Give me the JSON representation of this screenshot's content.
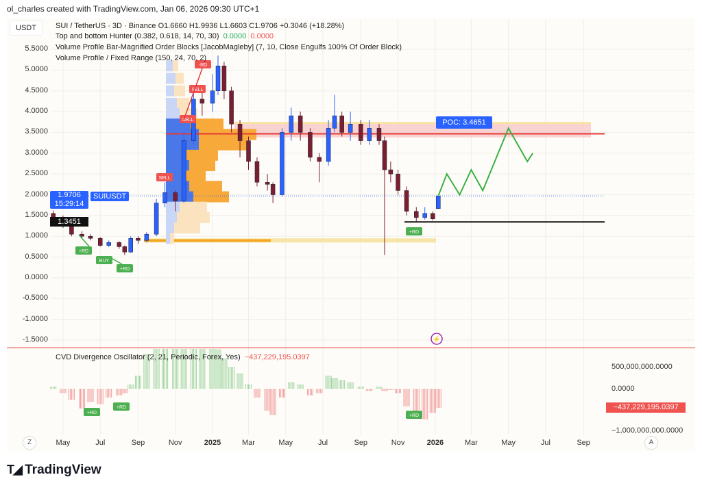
{
  "credit": "ol_charles created with TradingView.com, Jan 06, 2026 09:30 UTC+1",
  "symbol_box": "USDT",
  "legend": {
    "main": "SUI / TetherUS · 3D · Binance  O1.6660  H1.9936  L1.6603  C1.9706  +0.3046 (+18.28%)",
    "ind1": "Top and bottom Hunter (0.382, 0.618, 14, 70, 30)",
    "ind1_v1": "0.0000",
    "ind1_v2": "0.0000",
    "ind2": "Volume Profile Bar-Magnified Order Blocks [JacobMagleby] (7, 10, Close Engulfs 100% Of Order Block)",
    "ind3": "Volume Profile / Fixed Range (150, 24, 70, 2)"
  },
  "last_price": {
    "value": "1.9706",
    "countdown": "15:29:14",
    "symbol": "SUIUSDT"
  },
  "level_label": "1.3451",
  "poc_label": "POC: 3.4651",
  "signal_labels": {
    "buy": "BUY",
    "sell": "SELL",
    "rd_plus": "+RD",
    "rd_minus": "-RD"
  },
  "cvd": {
    "title": "CVD Divergence Oscillator (2, 21, Periodic, Forex, Yes)",
    "value": "−437,229,195.0397",
    "ticks": [
      "500,000,000.0000",
      "0.0000",
      "−1,000,000,000.0000"
    ]
  },
  "axis_buttons": {
    "left": "Z",
    "right": "A"
  },
  "logo": "TradingView",
  "colors": {
    "up": "#2962ff",
    "down": "#7b1f2e",
    "cvd_up": "#9fd49f",
    "cvd_down": "#f19a9a",
    "poc": "#e53935",
    "accent": "#2962ff"
  },
  "chart_data": {
    "type": "candlestick",
    "price_ticks": [
      "5.5000",
      "5.0000",
      "4.5000",
      "4.0000",
      "3.5000",
      "3.0000",
      "2.5000",
      "2.0000",
      "1.5000",
      "1.0000",
      "0.5000",
      "0.0000",
      "-0.5000",
      "-1.0000",
      "-1.5000"
    ],
    "ylim": [
      -1.5,
      5.5
    ],
    "time_ticks": [
      [
        "2024-05-01",
        "May",
        false
      ],
      [
        "2024-07-01",
        "Jul",
        false
      ],
      [
        "2024-09-01",
        "Sep",
        false
      ],
      [
        "2024-11-01",
        "Nov",
        false
      ],
      [
        "2025-01-01",
        "2025",
        true
      ],
      [
        "2025-03-01",
        "Mar",
        false
      ],
      [
        "2025-05-01",
        "May",
        false
      ],
      [
        "2025-07-01",
        "Jul",
        false
      ],
      [
        "2025-09-01",
        "Sep",
        false
      ],
      [
        "2025-11-01",
        "Nov",
        false
      ],
      [
        "2026-01-01",
        "2026",
        true
      ],
      [
        "2026-03-01",
        "Mar",
        false
      ],
      [
        "2026-05-01",
        "May",
        false
      ],
      [
        "2026-07-01",
        "Jul",
        false
      ],
      [
        "2026-09-01",
        "Sep",
        false
      ]
    ],
    "candles": [
      [
        "2024-04-15",
        1.55,
        1.62,
        1.35,
        1.45
      ],
      [
        "2024-05-01",
        1.45,
        1.5,
        1.2,
        1.25
      ],
      [
        "2024-05-15",
        1.25,
        1.3,
        1.0,
        1.05
      ],
      [
        "2024-06-01",
        1.05,
        1.12,
        0.95,
        1.0
      ],
      [
        "2024-06-15",
        1.0,
        1.05,
        0.9,
        0.95
      ],
      [
        "2024-07-01",
        0.95,
        0.98,
        0.75,
        0.78
      ],
      [
        "2024-07-15",
        0.78,
        0.9,
        0.74,
        0.85
      ],
      [
        "2024-08-01",
        0.85,
        0.88,
        0.7,
        0.75
      ],
      [
        "2024-08-10",
        0.75,
        0.78,
        0.55,
        0.62
      ],
      [
        "2024-08-20",
        0.62,
        1.0,
        0.6,
        0.95
      ],
      [
        "2024-09-01",
        0.95,
        1.0,
        0.82,
        0.9
      ],
      [
        "2024-09-15",
        0.9,
        1.1,
        0.85,
        1.05
      ],
      [
        "2024-10-01",
        1.05,
        1.9,
        1.0,
        1.8
      ],
      [
        "2024-10-15",
        1.8,
        2.3,
        1.7,
        2.05
      ],
      [
        "2024-11-01",
        2.05,
        2.1,
        1.6,
        1.85
      ],
      [
        "2024-11-15",
        1.85,
        3.5,
        1.8,
        3.3
      ],
      [
        "2024-12-01",
        3.3,
        4.6,
        3.2,
        4.3
      ],
      [
        "2024-12-15",
        4.3,
        4.6,
        3.9,
        4.2
      ],
      [
        "2025-01-01",
        4.2,
        4.9,
        4.0,
        4.5
      ],
      [
        "2025-01-10",
        4.5,
        5.35,
        4.4,
        5.1
      ],
      [
        "2025-01-20",
        5.1,
        5.2,
        4.3,
        4.5
      ],
      [
        "2025-02-01",
        4.5,
        4.6,
        3.5,
        3.7
      ],
      [
        "2025-02-15",
        3.7,
        3.8,
        2.9,
        3.3
      ],
      [
        "2025-03-01",
        3.3,
        3.4,
        2.6,
        2.8
      ],
      [
        "2025-03-15",
        2.8,
        2.9,
        2.2,
        2.3
      ],
      [
        "2025-04-01",
        2.3,
        2.5,
        2.1,
        2.25
      ],
      [
        "2025-04-10",
        2.25,
        2.3,
        1.8,
        2.0
      ],
      [
        "2025-04-25",
        2.0,
        3.6,
        1.95,
        3.5
      ],
      [
        "2025-05-10",
        3.5,
        4.1,
        3.3,
        3.9
      ],
      [
        "2025-05-25",
        3.9,
        4.0,
        3.3,
        3.5
      ],
      [
        "2025-06-10",
        3.5,
        3.6,
        2.8,
        2.9
      ],
      [
        "2025-06-25",
        2.9,
        3.0,
        2.3,
        2.8
      ],
      [
        "2025-07-10",
        2.8,
        3.8,
        2.7,
        3.6
      ],
      [
        "2025-07-20",
        3.6,
        4.4,
        3.5,
        3.9
      ],
      [
        "2025-08-01",
        3.9,
        4.0,
        3.4,
        3.5
      ],
      [
        "2025-08-15",
        3.5,
        4.0,
        3.3,
        3.7
      ],
      [
        "2025-09-01",
        3.7,
        3.8,
        3.2,
        3.3
      ],
      [
        "2025-09-15",
        3.3,
        3.8,
        3.2,
        3.6
      ],
      [
        "2025-10-01",
        3.6,
        3.7,
        3.2,
        3.3
      ],
      [
        "2025-10-10",
        3.3,
        3.4,
        0.55,
        2.6
      ],
      [
        "2025-10-20",
        2.6,
        2.8,
        2.3,
        2.5
      ],
      [
        "2025-11-01",
        2.5,
        2.6,
        2.0,
        2.1
      ],
      [
        "2025-11-15",
        2.1,
        2.2,
        1.5,
        1.6
      ],
      [
        "2025-12-01",
        1.6,
        1.7,
        1.35,
        1.45
      ],
      [
        "2025-12-15",
        1.45,
        1.7,
        1.4,
        1.55
      ],
      [
        "2025-12-28",
        1.55,
        1.6,
        1.38,
        1.42
      ],
      [
        "2026-01-06",
        1.666,
        1.9936,
        1.6603,
        1.9706
      ]
    ],
    "horizontal_levels": {
      "poc": 3.4651,
      "support": 1.3451
    },
    "order_block_zone": [
      3.38,
      3.75
    ],
    "demand_zone": [
      0.85,
      0.95
    ],
    "projection": [
      [
        "2026-01-06",
        1.97
      ],
      [
        "2026-01-20",
        2.5
      ],
      [
        "2026-02-10",
        2.0
      ],
      [
        "2026-03-01",
        2.6
      ],
      [
        "2026-03-20",
        2.1
      ],
      [
        "2026-05-01",
        3.6
      ],
      [
        "2026-06-01",
        2.8
      ],
      [
        "2026-06-10",
        3.0
      ]
    ],
    "cvd_series": {
      "ylim": [
        -1000000000,
        1000000000
      ],
      "values": [
        50,
        -100,
        -250,
        -450,
        -300,
        -350,
        -200,
        -150,
        -100,
        100,
        300,
        800,
        1000,
        1000,
        1000,
        1000,
        1000,
        1000,
        1000,
        900,
        700,
        500,
        350,
        100,
        -200,
        -500,
        -600,
        -200,
        150,
        100,
        -150,
        -100,
        300,
        250,
        200,
        150,
        50,
        -50,
        50,
        -50,
        -30,
        -100,
        -400,
        -650,
        -700,
        -550,
        -437
      ],
      "unit": "millions"
    }
  }
}
